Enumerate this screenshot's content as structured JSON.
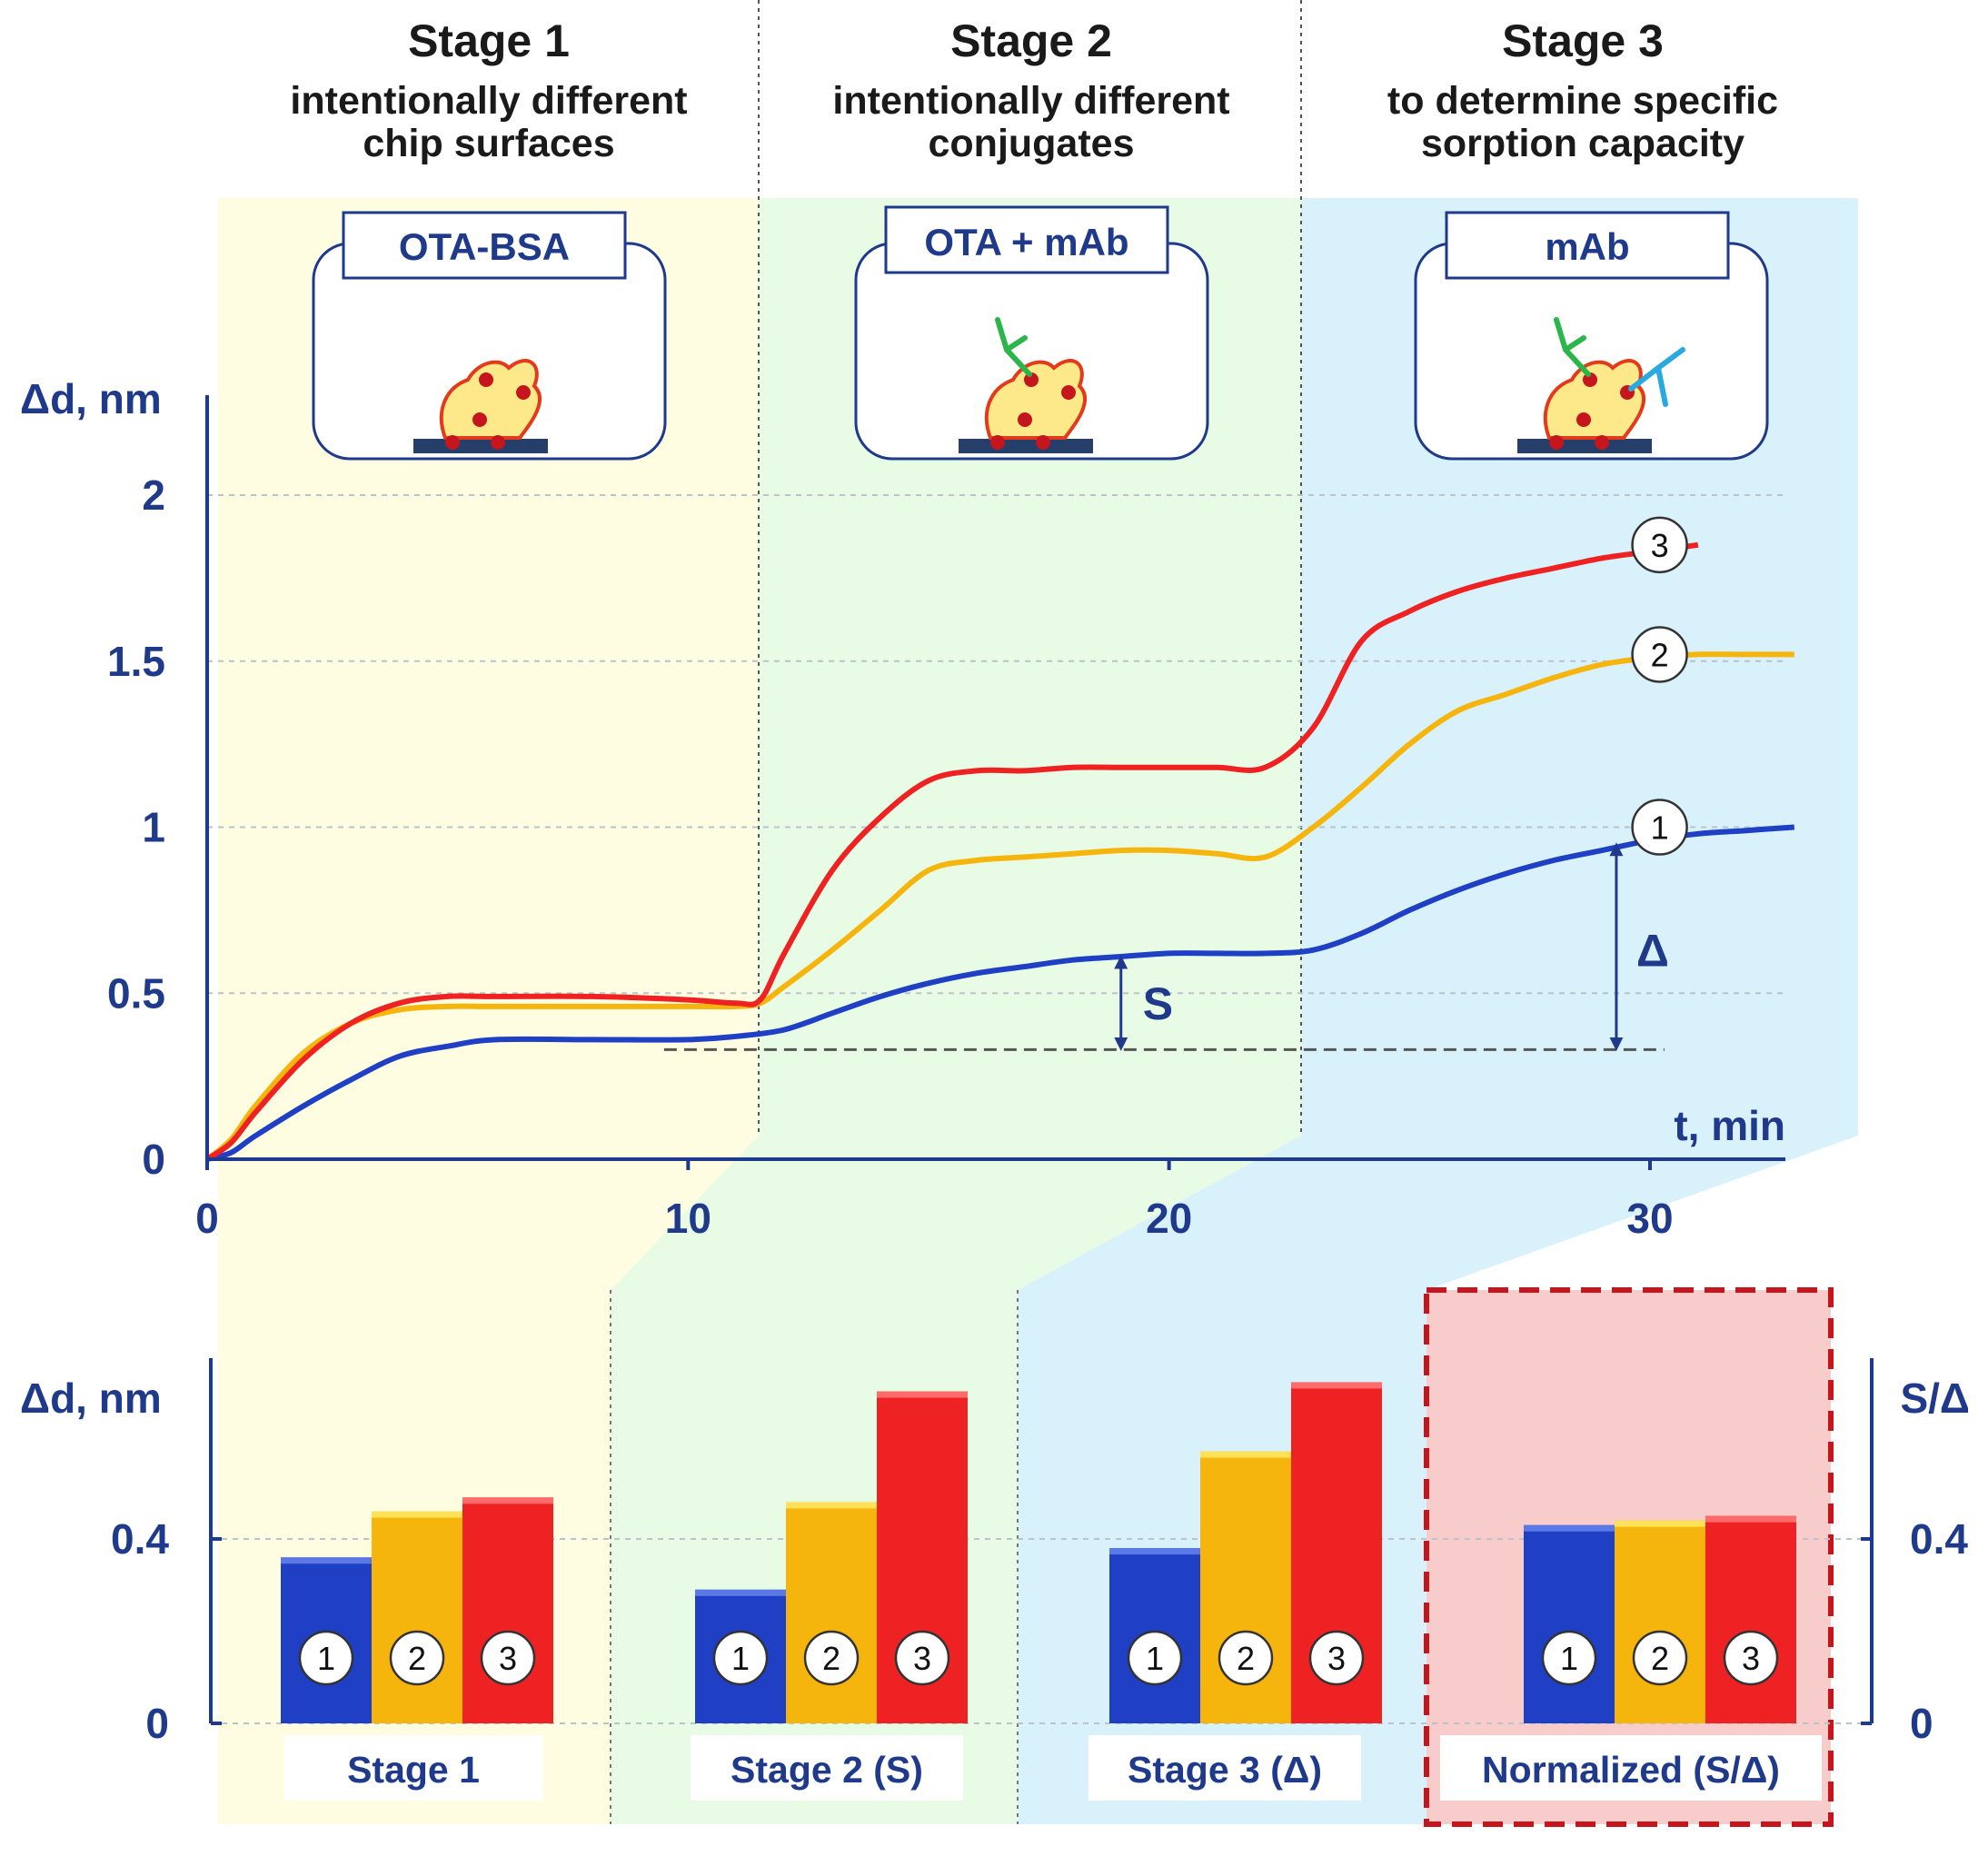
{
  "stages": [
    {
      "title": "Stage 1",
      "line1": "intentionally different",
      "line2": "chip surfaces",
      "chip": "OTA-BSA"
    },
    {
      "title": "Stage 2",
      "line1": "intentionally different",
      "line2": "conjugates",
      "chip": "OTA + mAb"
    },
    {
      "title": "Stage 3",
      "line1": "to determine specific",
      "line2": "sorption capacity",
      "chip": "mAb"
    }
  ],
  "colors": {
    "blue": "#1f3fc4",
    "orange": "#f5b50c",
    "red": "#ee2222",
    "axis": "#1f3a8a"
  },
  "chart_data": [
    {
      "type": "line",
      "xlabel": "t, min",
      "ylabel": "Δd, nm",
      "xlim": [
        0,
        33
      ],
      "ylim": [
        0,
        2.2
      ],
      "xticks": [
        "0",
        "10",
        "20",
        "30"
      ],
      "yticks": [
        "0",
        "0.5",
        "1",
        "1.5",
        "2"
      ],
      "stage_boundaries": [
        11.5,
        23
      ],
      "annotations": {
        "s_label": "S",
        "delta_label": "Δ",
        "baseline_y": 0.33
      },
      "series": [
        {
          "name": "1",
          "color": "#1f3fc4",
          "x": [
            0,
            0.5,
            1,
            2,
            3,
            4,
            5,
            6,
            8,
            10,
            11,
            12,
            13,
            14,
            15,
            16,
            17,
            18,
            19,
            20,
            21,
            22,
            23,
            24,
            25,
            26,
            27,
            28,
            29,
            30,
            31,
            32,
            33
          ],
          "y": [
            0,
            0.02,
            0.07,
            0.16,
            0.24,
            0.31,
            0.34,
            0.36,
            0.36,
            0.36,
            0.37,
            0.39,
            0.44,
            0.49,
            0.53,
            0.56,
            0.58,
            0.6,
            0.61,
            0.62,
            0.62,
            0.62,
            0.63,
            0.68,
            0.75,
            0.81,
            0.86,
            0.9,
            0.93,
            0.96,
            0.98,
            0.99,
            1.0
          ]
        },
        {
          "name": "2",
          "color": "#f5b50c",
          "x": [
            0,
            0.5,
            1,
            2,
            3,
            4,
            5,
            6,
            8,
            10,
            11,
            11.5,
            12,
            13,
            14,
            15,
            16,
            17,
            18,
            19,
            20,
            21,
            22,
            23,
            24,
            25,
            26,
            27,
            28,
            29,
            30,
            31,
            32,
            33
          ],
          "y": [
            0,
            0.06,
            0.16,
            0.32,
            0.41,
            0.45,
            0.46,
            0.46,
            0.46,
            0.46,
            0.46,
            0.47,
            0.52,
            0.63,
            0.75,
            0.87,
            0.9,
            0.91,
            0.92,
            0.93,
            0.93,
            0.92,
            0.91,
            1.0,
            1.12,
            1.25,
            1.35,
            1.4,
            1.45,
            1.49,
            1.51,
            1.52,
            1.52,
            1.52
          ]
        },
        {
          "name": "3",
          "color": "#ee2222",
          "x": [
            0,
            0.5,
            1,
            2,
            3,
            4,
            5,
            6,
            8,
            10,
            11,
            11.5,
            12,
            13,
            14,
            15,
            16,
            17,
            18,
            19,
            20,
            21,
            22,
            23,
            24,
            25,
            26,
            27,
            28,
            29,
            30,
            31
          ],
          "y": [
            0,
            0.05,
            0.14,
            0.3,
            0.41,
            0.47,
            0.49,
            0.49,
            0.49,
            0.48,
            0.47,
            0.48,
            0.62,
            0.87,
            1.03,
            1.14,
            1.17,
            1.17,
            1.18,
            1.18,
            1.18,
            1.18,
            1.18,
            1.3,
            1.56,
            1.65,
            1.71,
            1.75,
            1.78,
            1.81,
            1.83,
            1.85
          ]
        }
      ]
    },
    {
      "type": "bar",
      "ylabel": "Δd, nm",
      "ylabel_right": "S/Δ",
      "ylim": [
        0,
        0.78
      ],
      "yticks": [
        "0",
        "0.4"
      ],
      "yticks_right": [
        "0",
        "0.4"
      ],
      "group_labels": [
        "Stage 1",
        "Stage 2 (S)",
        "Stage 3 (Δ)",
        "Normalized (S/Δ)"
      ],
      "bar_labels": [
        "1",
        "2",
        "3"
      ],
      "groups": [
        {
          "name": "Stage 1",
          "values": [
            0.36,
            0.46,
            0.49
          ]
        },
        {
          "name": "Stage 2 (S)",
          "values": [
            0.29,
            0.48,
            0.72
          ]
        },
        {
          "name": "Stage 3 (Δ)",
          "values": [
            0.38,
            0.59,
            0.74
          ]
        },
        {
          "name": "Normalized (S/Δ)",
          "values": [
            0.43,
            0.44,
            0.45
          ]
        }
      ]
    }
  ]
}
